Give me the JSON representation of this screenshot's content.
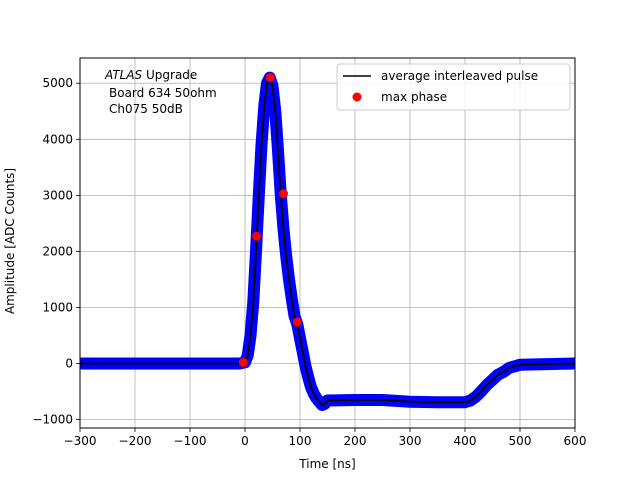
{
  "chart_data": {
    "type": "scatter",
    "xlabel": "Time [ns]",
    "ylabel": "Amplitude [ADC Counts]",
    "xlim": [
      -300,
      600
    ],
    "ylim": [
      -1150,
      5450
    ],
    "xticks": [
      "−300",
      "−200",
      "−100",
      "0",
      "100",
      "200",
      "300",
      "400",
      "500",
      "600"
    ],
    "xtick_values": [
      -300,
      -200,
      -100,
      0,
      100,
      200,
      300,
      400,
      500,
      600
    ],
    "yticks": [
      "−1000",
      "0",
      "1000",
      "2000",
      "3000",
      "4000",
      "5000"
    ],
    "ytick_values": [
      -1000,
      0,
      1000,
      2000,
      3000,
      4000,
      5000
    ],
    "grid": true,
    "legend_position": "top-right",
    "annotation": {
      "line1_italic": "ATLAS",
      "line1_rest": " Upgrade",
      "line2": "Board 634 50ohm",
      "line3": "Ch075 50dB"
    },
    "series": [
      {
        "name": "average interleaved pulse",
        "kind": "line",
        "color": "#000000",
        "x": [
          -300,
          -200,
          -100,
          -10,
          0,
          5,
          10,
          15,
          20,
          25,
          30,
          35,
          40,
          45,
          50,
          55,
          60,
          65,
          70,
          75,
          80,
          85,
          90,
          95,
          100,
          105,
          110,
          115,
          120,
          125,
          130,
          135,
          140,
          145,
          150,
          200,
          250,
          300,
          350,
          400,
          410,
          420,
          430,
          440,
          450,
          460,
          470,
          480,
          500,
          550,
          600
        ],
        "y": [
          0,
          0,
          0,
          0,
          20,
          150,
          500,
          1100,
          2000,
          3000,
          3900,
          4600,
          5000,
          5100,
          4950,
          4500,
          3800,
          3000,
          2400,
          1900,
          1500,
          1150,
          850,
          700,
          450,
          200,
          -50,
          -250,
          -420,
          -540,
          -620,
          -680,
          -740,
          -720,
          -660,
          -650,
          -650,
          -680,
          -690,
          -690,
          -660,
          -590,
          -490,
          -380,
          -290,
          -200,
          -150,
          -80,
          -20,
          -10,
          0
        ]
      },
      {
        "name": "",
        "kind": "band",
        "color": "#0000ff",
        "x": [
          -300,
          -200,
          -100,
          -10,
          0,
          5,
          10,
          15,
          20,
          25,
          30,
          35,
          40,
          45,
          50,
          55,
          60,
          65,
          70,
          75,
          80,
          85,
          90,
          95,
          100,
          105,
          110,
          115,
          120,
          125,
          130,
          135,
          140,
          145,
          150,
          200,
          250,
          300,
          350,
          400,
          410,
          420,
          430,
          440,
          450,
          460,
          470,
          480,
          500,
          550,
          600
        ],
        "y": [
          0,
          0,
          0,
          0,
          20,
          150,
          500,
          1100,
          2000,
          3000,
          3900,
          4600,
          5000,
          5100,
          4950,
          4500,
          3800,
          3000,
          2400,
          1900,
          1500,
          1150,
          850,
          700,
          450,
          200,
          -50,
          -250,
          -420,
          -540,
          -620,
          -680,
          -740,
          -720,
          -660,
          -650,
          -650,
          -680,
          -690,
          -690,
          -660,
          -590,
          -490,
          -380,
          -290,
          -200,
          -150,
          -80,
          -20,
          -10,
          0
        ]
      },
      {
        "name": "max phase",
        "kind": "points",
        "color": "#ff0000",
        "x": [
          -3,
          21,
          46,
          70,
          95
        ],
        "y": [
          20,
          2270,
          5100,
          3030,
          740
        ]
      }
    ]
  }
}
